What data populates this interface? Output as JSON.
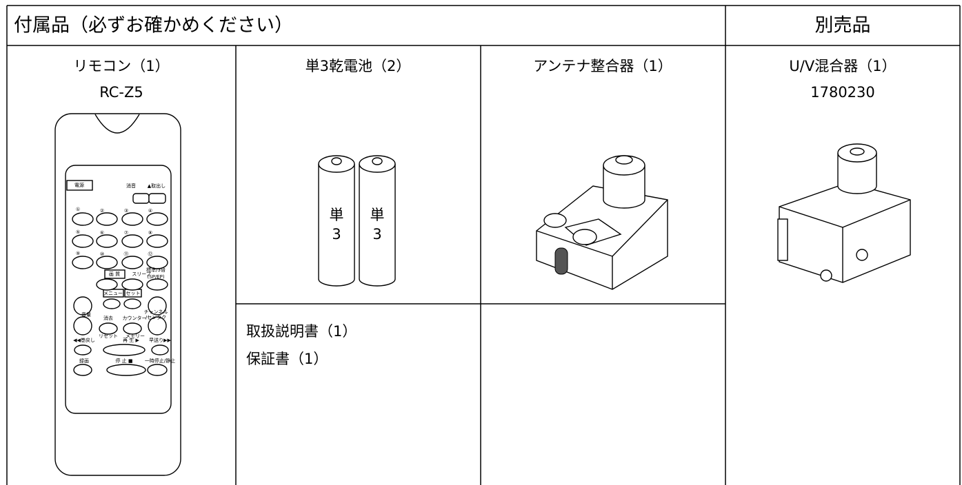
{
  "header": {
    "included_title": "付属品（必ずお確かめください）",
    "optional_title": "別売品"
  },
  "items": [
    {
      "name": "リモコン（1）",
      "model": "RC-Z5"
    },
    {
      "name": "単3乾電池（2）"
    },
    {
      "name": "アンテナ整合器（1）"
    },
    {
      "name": "U/V混合器（1）",
      "model": "1780230"
    }
  ],
  "documents": [
    "取扱説明書（1）",
    "保証書（1）"
  ],
  "battery_labels": [
    {
      "kanji": "単",
      "number": "3"
    },
    {
      "kanji": "単",
      "number": "3"
    }
  ],
  "remote_labels": [
    "電源",
    "消音",
    "▲取出し",
    "①",
    "②",
    "③",
    "④",
    "⑤",
    "⑥",
    "⑦",
    "⑧",
    "⑨",
    "⑩",
    "⑪",
    "⑫",
    "画 質",
    "スリープ",
    "標準/3倍",
    "(SP/EP)",
    "メニュー",
    "セット",
    "音量",
    "消去",
    "カウンター",
    "チャンネル",
    "/センタク",
    "リセット",
    "メモリー",
    "◀◀巻戻し",
    "再 生 ▶",
    "早送り▶▶",
    "録画",
    "停 止 ■",
    "一時停止/静止"
  ]
}
